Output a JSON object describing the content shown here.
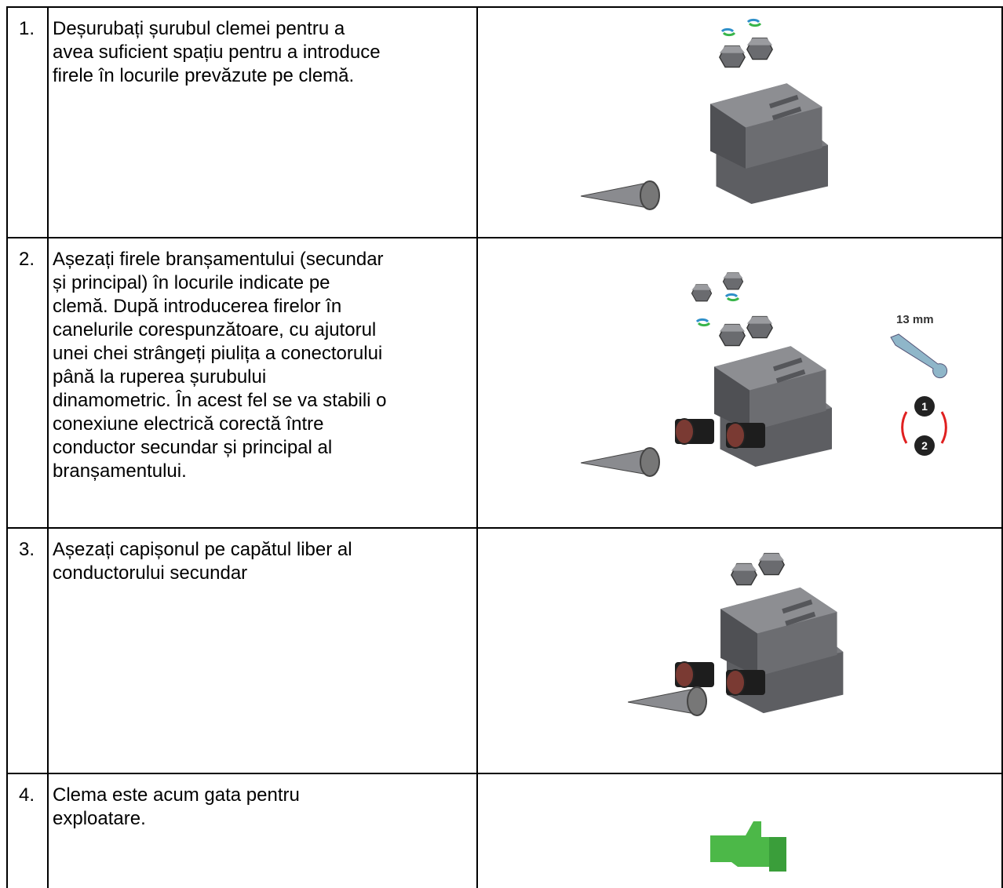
{
  "table": {
    "rows": [
      {
        "number": "1.",
        "lines": [
          "Deșurubați șurubul clemei pentru a",
          "avea suficient spațiu pentru a introduce",
          "firele în locurile prevăzute pe clemă."
        ]
      },
      {
        "number": "2.",
        "lines": [
          "Așezați firele branșamentului (secundar",
          "și principal) în locurile indicate pe",
          "clemă. După introducerea firelor în",
          "canelurile corespunzătoare, cu ajutorul",
          "unei chei strângeți piulița a conectorului",
          "până la ruperea șurubului",
          "dinamometric. În acest fel se va stabili o",
          "conexiune electrică corectă între",
          "conductor secundar și principal al",
          "branșamentului."
        ],
        "tool_label": "13 mm",
        "steps": [
          "1",
          "2"
        ]
      },
      {
        "number": "3.",
        "lines": [
          "Așezați capișonul pe capătul liber al",
          "conductorului secundar"
        ]
      },
      {
        "number": "4.",
        "lines": [
          "Clema este acum gata pentru",
          "exploatare."
        ]
      }
    ]
  }
}
